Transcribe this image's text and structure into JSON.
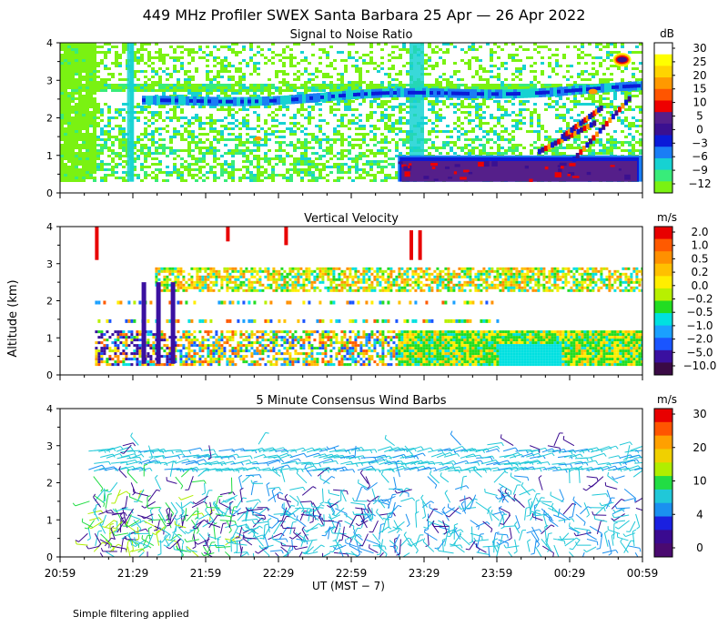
{
  "figure": {
    "title": "449 MHz Profiler SWEX Santa Barbara 25 Apr — 26 Apr 2022",
    "ylabel": "Altitude (km)",
    "xlabel": "UT  (MST − 7)",
    "footer": "Simple filtering applied",
    "time_ticks": [
      "20:59",
      "21:29",
      "21:59",
      "22:29",
      "22:59",
      "23:29",
      "23:59",
      "00:29",
      "00:59"
    ]
  },
  "chart_data": [
    {
      "type": "heatmap",
      "title": "Signal to Noise Ratio",
      "xlabel": "UT  (MST − 7)",
      "ylabel": "Altitude (km)",
      "x_range": [
        "20:59",
        "00:59"
      ],
      "ylim": [
        0,
        4
      ],
      "y_ticks": [
        "0",
        "1",
        "2",
        "3",
        "4"
      ],
      "colorbar": {
        "unit": "dB",
        "labels": [
          "30",
          "25",
          "20",
          "15",
          "10",
          "5",
          "0",
          "−3",
          "−6",
          "−9",
          "−12"
        ],
        "colors": [
          "#ffffff",
          "#ffff00",
          "#ffd400",
          "#ff9900",
          "#ff5500",
          "#ee0000",
          "#551f8a",
          "#3a1090",
          "#0a1ad8",
          "#1a7ef5",
          "#16d2d2",
          "#38ec7a",
          "#7af212"
        ]
      },
      "description_values": {
        "low_layer_snr_db": [
          -3,
          0,
          5
        ],
        "mid_layer_altitude_km": [
          1.8,
          2.8
        ]
      }
    },
    {
      "type": "heatmap",
      "title": "Vertical Velocity",
      "xlabel": "UT  (MST − 7)",
      "ylabel": "Altitude (km)",
      "x_range": [
        "20:59",
        "00:59"
      ],
      "ylim": [
        0,
        4
      ],
      "y_ticks": [
        "0",
        "1",
        "2",
        "3",
        "4"
      ],
      "colorbar": {
        "unit": "m/s",
        "labels": [
          "2.0",
          "1.0",
          "0.5",
          "0.2",
          "0.0",
          "−0.2",
          "−0.5",
          "−1.0",
          "−2.0",
          "−5.0",
          "−10.0"
        ],
        "colors": [
          "#e80000",
          "#ff5a00",
          "#ff9000",
          "#ffc000",
          "#ffee00",
          "#b8f000",
          "#22dd22",
          "#00e0e0",
          "#1aa0ff",
          "#1a55ff",
          "#3a10a0",
          "#3a0a45"
        ]
      }
    },
    {
      "type": "scatter",
      "title": "5 Minute Consensus Wind Barbs",
      "xlabel": "UT  (MST − 7)",
      "ylabel": "Altitude (km)",
      "x_range": [
        "20:59",
        "00:59"
      ],
      "ylim": [
        0,
        4
      ],
      "y_ticks": [
        "0",
        "1",
        "2",
        "3",
        "4"
      ],
      "colorbar": {
        "unit": "m/s",
        "labels": [
          "30",
          "20",
          "10",
          "4",
          "0"
        ],
        "colors": [
          "#e80000",
          "#ff5500",
          "#ffa000",
          "#f0d000",
          "#b0ee00",
          "#22dd44",
          "#20c8d8",
          "#1a90f0",
          "#1a20e0",
          "#3a0a90",
          "#4a0a70"
        ]
      },
      "wind_speed_bands_ms": [
        0,
        4,
        10,
        20,
        30
      ]
    }
  ]
}
